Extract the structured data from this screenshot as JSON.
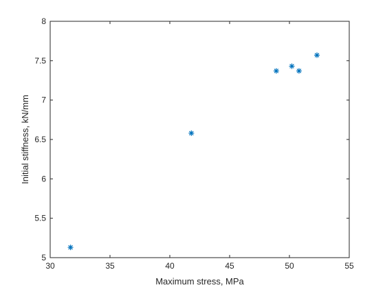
{
  "chart_data": {
    "type": "scatter",
    "marker": "asterisk",
    "color": "#0072BD",
    "xlabel": "Maximum stress, MPa",
    "ylabel": "Initial stiffness, kN/mm",
    "xlim": [
      30,
      55
    ],
    "ylim": [
      5,
      8
    ],
    "xticks": [
      "30",
      "35",
      "40",
      "45",
      "50",
      "55"
    ],
    "yticks": [
      "5",
      "5.5",
      "6",
      "6.5",
      "7",
      "7.5",
      "8"
    ],
    "grid": false,
    "points": [
      {
        "x": 31.7,
        "y": 5.13
      },
      {
        "x": 41.8,
        "y": 6.58
      },
      {
        "x": 48.9,
        "y": 7.37
      },
      {
        "x": 50.2,
        "y": 7.43
      },
      {
        "x": 50.8,
        "y": 7.37
      },
      {
        "x": 52.3,
        "y": 7.57
      }
    ]
  }
}
